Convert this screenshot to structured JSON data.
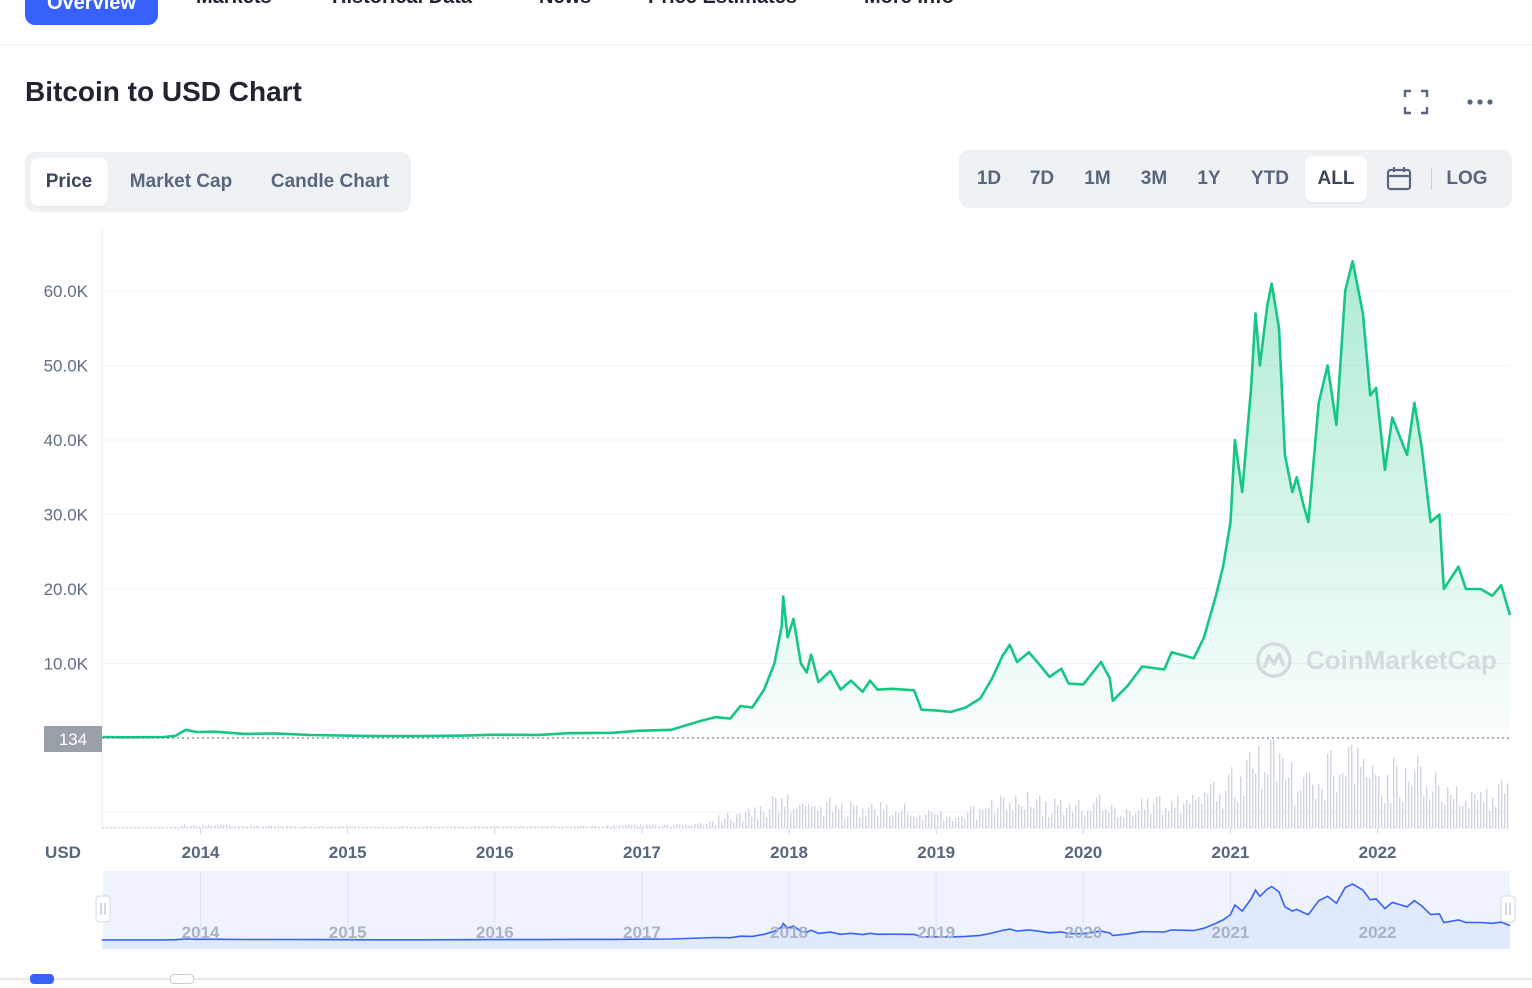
{
  "nav": {
    "tabs": [
      {
        "label": "Overview",
        "active": true
      },
      {
        "label": "Markets"
      },
      {
        "label": "Historical Data"
      },
      {
        "label": "News"
      },
      {
        "label": "Price Estimates"
      },
      {
        "label": "More Info"
      }
    ]
  },
  "page": {
    "title": "Bitcoin to USD Chart"
  },
  "icons": {
    "fullscreen": "fullscreen-icon",
    "more": "more-icon",
    "calendar": "calendar-icon",
    "watermark": "coinmarketcap-logo"
  },
  "chart_tabs": [
    "Price",
    "Market Cap",
    "Candle Chart"
  ],
  "ranges": [
    "1D",
    "7D",
    "1M",
    "3M",
    "1Y",
    "YTD",
    "ALL",
    "LOG"
  ],
  "active_range": "ALL",
  "watermark": "CoinMarketCap",
  "colors": {
    "accent": "#3861fb",
    "line": "#16c784",
    "navigator": "#3861fb",
    "cursor_label": "#9aa0a8"
  },
  "chart_data": {
    "type": "area",
    "currency_label": "USD",
    "cursor_value": "134",
    "y_ticks": [
      "10.0K",
      "20.0K",
      "30.0K",
      "40.0K",
      "50.0K",
      "60.0K"
    ],
    "x_ticks": [
      "2014",
      "2015",
      "2016",
      "2017",
      "2018",
      "2019",
      "2020",
      "2021",
      "2022"
    ],
    "x_range": [
      2013.33,
      2022.9
    ],
    "y_range": [
      0,
      65000
    ],
    "grid": true,
    "series": [
      {
        "values": [
          [
            2013.33,
            134
          ],
          [
            2013.5,
            100
          ],
          [
            2013.75,
            130
          ],
          [
            2013.83,
            300
          ],
          [
            2013.9,
            1100
          ],
          [
            2013.97,
            800
          ],
          [
            2014.1,
            850
          ],
          [
            2014.3,
            550
          ],
          [
            2014.5,
            620
          ],
          [
            2014.75,
            400
          ],
          [
            2014.97,
            320
          ],
          [
            2015.2,
            250
          ],
          [
            2015.5,
            260
          ],
          [
            2015.8,
            320
          ],
          [
            2015.97,
            430
          ],
          [
            2016.3,
            420
          ],
          [
            2016.5,
            650
          ],
          [
            2016.8,
            700
          ],
          [
            2016.97,
            960
          ],
          [
            2017.2,
            1100
          ],
          [
            2017.4,
            2300
          ],
          [
            2017.5,
            2800
          ],
          [
            2017.6,
            2600
          ],
          [
            2017.67,
            4300
          ],
          [
            2017.75,
            4100
          ],
          [
            2017.83,
            6500
          ],
          [
            2017.9,
            10000
          ],
          [
            2017.95,
            15000
          ],
          [
            2017.96,
            19000
          ],
          [
            2017.99,
            13500
          ],
          [
            2018.03,
            16000
          ],
          [
            2018.08,
            10000
          ],
          [
            2018.12,
            8800
          ],
          [
            2018.15,
            11200
          ],
          [
            2018.2,
            7500
          ],
          [
            2018.28,
            9000
          ],
          [
            2018.35,
            6500
          ],
          [
            2018.42,
            7700
          ],
          [
            2018.5,
            6200
          ],
          [
            2018.55,
            7700
          ],
          [
            2018.6,
            6500
          ],
          [
            2018.7,
            6600
          ],
          [
            2018.85,
            6400
          ],
          [
            2018.9,
            3800
          ],
          [
            2019.0,
            3700
          ],
          [
            2019.1,
            3500
          ],
          [
            2019.2,
            4100
          ],
          [
            2019.3,
            5300
          ],
          [
            2019.38,
            8000
          ],
          [
            2019.45,
            11000
          ],
          [
            2019.5,
            12500
          ],
          [
            2019.55,
            10200
          ],
          [
            2019.63,
            11500
          ],
          [
            2019.7,
            9900
          ],
          [
            2019.77,
            8200
          ],
          [
            2019.85,
            9300
          ],
          [
            2019.9,
            7300
          ],
          [
            2020.0,
            7200
          ],
          [
            2020.12,
            10200
          ],
          [
            2020.18,
            8000
          ],
          [
            2020.2,
            5000
          ],
          [
            2020.3,
            7000
          ],
          [
            2020.4,
            9600
          ],
          [
            2020.55,
            9200
          ],
          [
            2020.6,
            11500
          ],
          [
            2020.75,
            10700
          ],
          [
            2020.82,
            13500
          ],
          [
            2020.9,
            19000
          ],
          [
            2020.95,
            23000
          ],
          [
            2021.0,
            29000
          ],
          [
            2021.03,
            40000
          ],
          [
            2021.08,
            33000
          ],
          [
            2021.14,
            47000
          ],
          [
            2021.17,
            57000
          ],
          [
            2021.2,
            50000
          ],
          [
            2021.25,
            58000
          ],
          [
            2021.28,
            61000
          ],
          [
            2021.33,
            55000
          ],
          [
            2021.37,
            38000
          ],
          [
            2021.42,
            33000
          ],
          [
            2021.45,
            35000
          ],
          [
            2021.5,
            31000
          ],
          [
            2021.53,
            29000
          ],
          [
            2021.6,
            45000
          ],
          [
            2021.66,
            50000
          ],
          [
            2021.72,
            42000
          ],
          [
            2021.78,
            60000
          ],
          [
            2021.83,
            64000
          ],
          [
            2021.9,
            57000
          ],
          [
            2021.95,
            46000
          ],
          [
            2021.99,
            47000
          ],
          [
            2022.05,
            36000
          ],
          [
            2022.1,
            43000
          ],
          [
            2022.2,
            38000
          ],
          [
            2022.25,
            45000
          ],
          [
            2022.3,
            39000
          ],
          [
            2022.36,
            29000
          ],
          [
            2022.42,
            30000
          ],
          [
            2022.45,
            20000
          ],
          [
            2022.55,
            23000
          ],
          [
            2022.6,
            20000
          ],
          [
            2022.7,
            20000
          ],
          [
            2022.78,
            19100
          ],
          [
            2022.84,
            20500
          ],
          [
            2022.9,
            16500
          ]
        ]
      }
    ]
  }
}
